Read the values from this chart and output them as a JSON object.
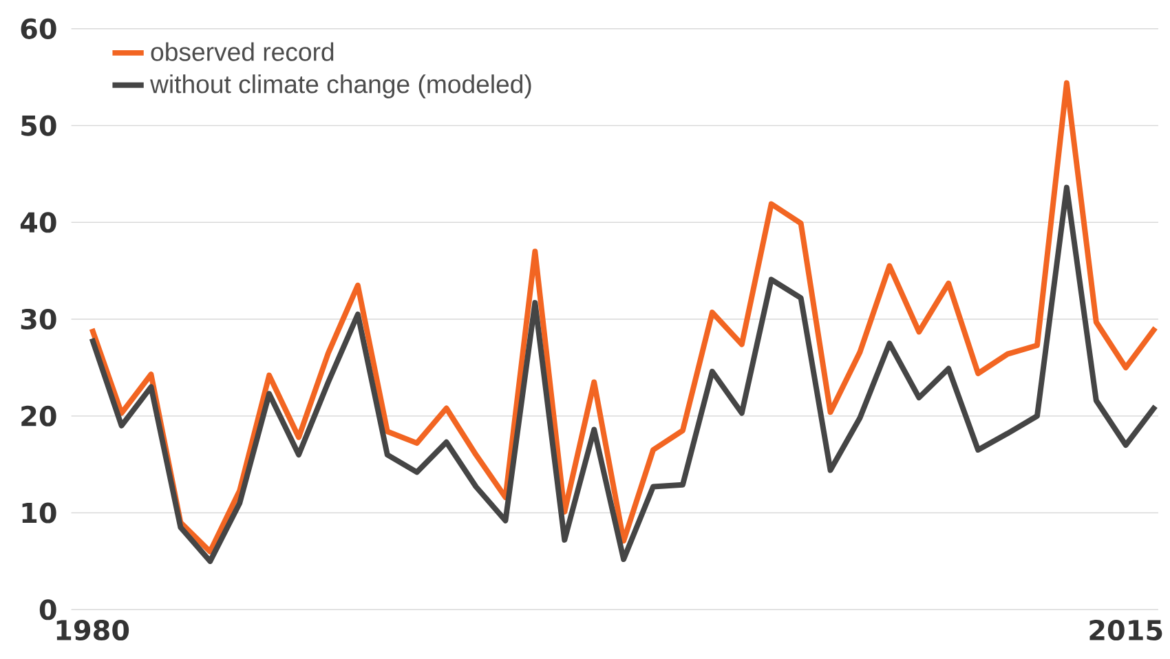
{
  "chart_data": {
    "type": "line",
    "x": [
      1980,
      1981,
      1982,
      1983,
      1984,
      1985,
      1986,
      1987,
      1988,
      1989,
      1990,
      1991,
      1992,
      1993,
      1994,
      1995,
      1996,
      1997,
      1998,
      1999,
      2000,
      2001,
      2002,
      2003,
      2004,
      2005,
      2006,
      2007,
      2008,
      2009,
      2010,
      2011,
      2012,
      2013,
      2014,
      2015,
      2016
    ],
    "series": [
      {
        "name": "observed record",
        "color": "#f26522",
        "values": [
          29,
          20.3,
          24.3,
          9,
          6,
          12.3,
          24.2,
          17.8,
          26.5,
          33.5,
          18.4,
          17.2,
          20.8,
          16,
          11.6,
          37,
          10.1,
          23.5,
          7.1,
          16.5,
          18.5,
          30.7,
          27.4,
          41.9,
          39.9,
          20.4,
          26.6,
          35.5,
          28.7,
          33.7,
          24.4,
          26.4,
          27.3,
          54.4,
          29.7,
          25,
          29.1
        ]
      },
      {
        "name": "without climate change (modeled)",
        "color": "#454545",
        "values": [
          28,
          19,
          23,
          8.5,
          5,
          11,
          22.3,
          16,
          23.5,
          30.5,
          16,
          14.2,
          17.3,
          12.7,
          9.2,
          31.7,
          7.2,
          18.6,
          5.2,
          12.7,
          12.9,
          24.6,
          20.3,
          34.1,
          32.2,
          14.4,
          19.8,
          27.5,
          21.9,
          24.9,
          16.5,
          18.2,
          20,
          43.6,
          21.6,
          17,
          21
        ]
      }
    ],
    "xlim": [
      1979.3,
      2016.1
    ],
    "xticks": [
      1980,
      2015
    ],
    "ylim": [
      0,
      60
    ],
    "yticks": [
      0,
      10,
      20,
      30,
      40,
      50,
      60
    ],
    "grid": "y",
    "legend": "top left"
  }
}
